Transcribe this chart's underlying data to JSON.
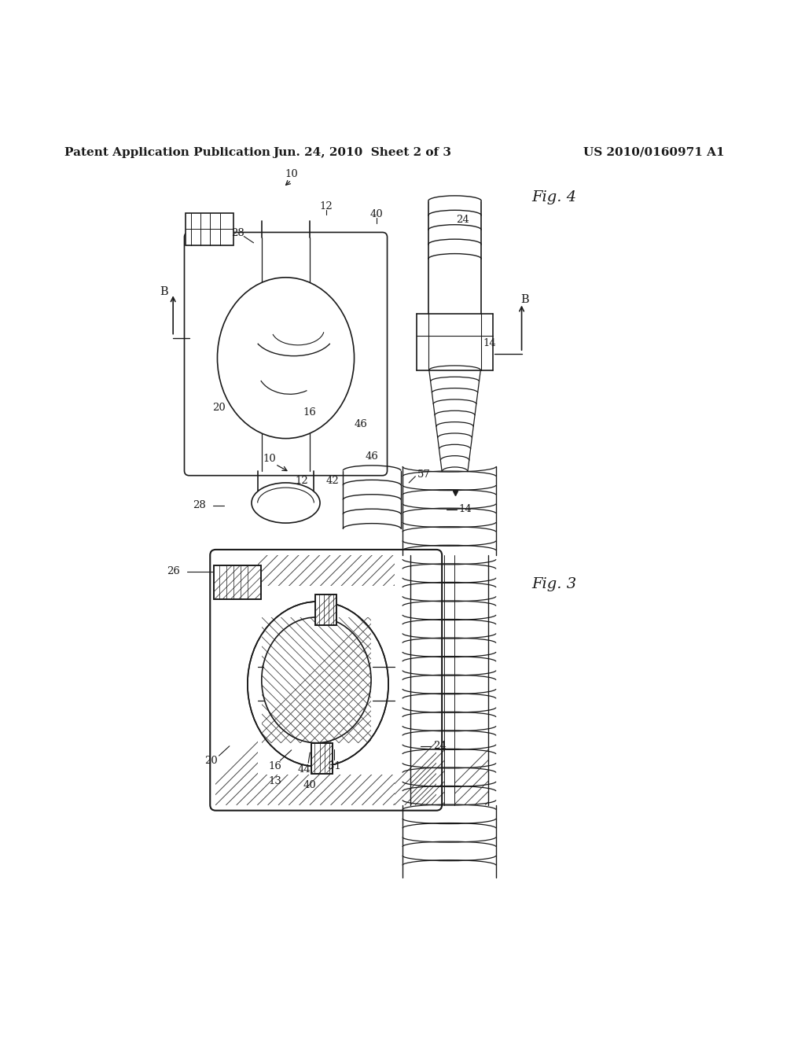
{
  "background_color": "#ffffff",
  "header_left": "Patent Application Publication",
  "header_center": "Jun. 24, 2010  Sheet 2 of 3",
  "header_right": "US 2010/0160971 A1",
  "header_fontsize": 11,
  "fig3_label": "Fig. 3",
  "fig4_label": "Fig. 4",
  "line_color": "#1a1a1a",
  "text_color": "#1a1a1a",
  "label_fontsize": 9.5
}
